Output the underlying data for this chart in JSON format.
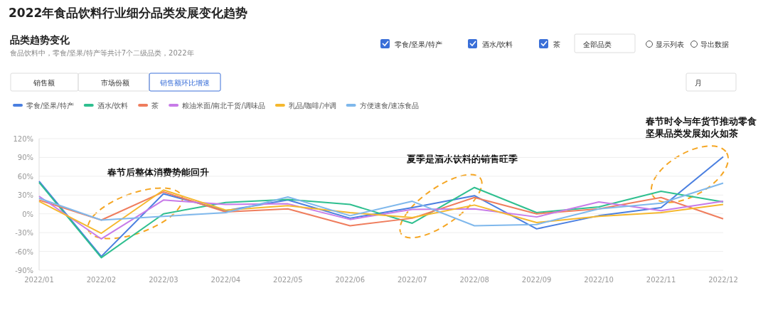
{
  "chart_data": {
    "type": "line",
    "title": "2022年食品饮料行业细分品类发展变化趋势",
    "subtitle": "品类趋势变化",
    "categories": [
      "2022/01",
      "2022/02",
      "2022/03",
      "2022/04",
      "2022/05",
      "2022/06",
      "2022/07",
      "2022/08",
      "2022/09",
      "2022/10",
      "2022/11",
      "2022/12"
    ],
    "series": [
      {
        "name": "零食/坚果/特产",
        "color": "#4a7fe0",
        "values": [
          52,
          -68,
          32,
          5,
          22,
          -7,
          10,
          29,
          -24,
          -3,
          10,
          91
        ]
      },
      {
        "name": "酒水/饮料",
        "color": "#2fbf8f",
        "values": [
          50,
          -70,
          0,
          18,
          23,
          15,
          -15,
          42,
          2,
          11,
          36,
          19
        ]
      },
      {
        "name": "茶",
        "color": "#ef7d5d",
        "values": [
          22,
          -10,
          35,
          3,
          8,
          -19,
          -7,
          26,
          0,
          8,
          26,
          -8
        ]
      },
      {
        "name": "粮油米面/南北干货/调味品",
        "color": "#c77be8",
        "values": [
          28,
          -40,
          22,
          15,
          16,
          -9,
          7,
          8,
          -5,
          19,
          5,
          20
        ]
      },
      {
        "name": "乳品/咖啡/冲调",
        "color": "#f5b82e",
        "values": [
          20,
          -31,
          38,
          6,
          13,
          2,
          -6,
          14,
          -14,
          -4,
          2,
          15
        ]
      },
      {
        "name": "方便速食/速冻食品",
        "color": "#7fb8ec",
        "values": [
          25,
          -10,
          -4,
          2,
          27,
          -3,
          20,
          -19,
          -17,
          8,
          17,
          49
        ]
      }
    ],
    "ylim": [
      -90,
      120
    ],
    "yticks": [
      {
        "value": -90,
        "label": "-90%"
      },
      {
        "value": -60,
        "label": "-60%"
      },
      {
        "value": -30,
        "label": "-30%"
      },
      {
        "value": 0,
        "label": "0%"
      },
      {
        "value": 30,
        "label": "30%"
      },
      {
        "value": 60,
        "label": "60%"
      },
      {
        "value": 90,
        "label": "90%"
      },
      {
        "value": 120,
        "label": "120%"
      }
    ],
    "grid": "y",
    "legend": "top left",
    "marker": "none",
    "line_style": "solid",
    "annotations": [
      "食品饮料中，零食/坚果/特产等共计7个二级品类，2022年",
      "零食/坚果/特产",
      "酒水/饮料",
      "茶",
      "全部品类",
      "显示列表",
      "导出数据",
      "销售额",
      "市场份额",
      "销售额环比增速",
      "月",
      "春节后整体消费势能回升",
      "夏季是酒水饮料的销售旺季",
      "春节时令与年货节推动零食",
      "坚果品类发展如火如茶"
    ]
  }
}
